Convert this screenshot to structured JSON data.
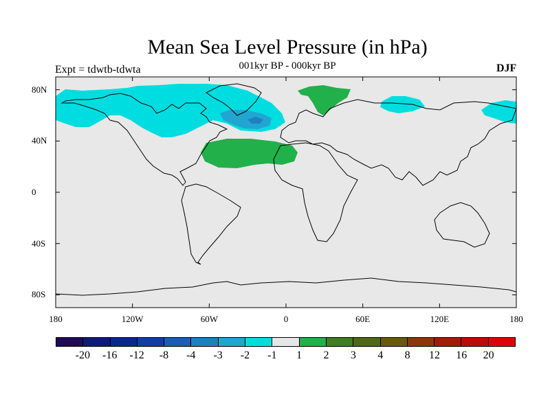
{
  "title": "Mean Sea Level Pressure (in hPa)",
  "subtitle": "001kyr BP - 000kyr BP",
  "left_label": "Expt = tdwtb-tdwta",
  "right_label": "DJF",
  "colors": {
    "land_background": "#e8e8e8",
    "ocean": "#e8e8e8",
    "coast": "#000000"
  },
  "axes": {
    "lat_ticks": [
      "80N",
      "40N",
      "0",
      "40S",
      "80S"
    ],
    "lat_values": [
      80,
      40,
      0,
      -40,
      -80
    ],
    "lon_ticks": [
      "180",
      "120W",
      "60W",
      "0",
      "60E",
      "120E",
      "180"
    ],
    "lon_values": [
      -180,
      -120,
      -60,
      0,
      60,
      120,
      180
    ],
    "lat_range": [
      -90,
      90
    ],
    "lon_range": [
      -180,
      180
    ]
  },
  "colorbar": {
    "colors": [
      "#1f0b5a",
      "#0f1a7a",
      "#0a2a8a",
      "#0f3fa0",
      "#1560b0",
      "#1f80c0",
      "#20a6d0",
      "#00dde0",
      "#e6e6e6",
      "#22b04a",
      "#3f7f1f",
      "#4f6a10",
      "#6a5a08",
      "#8a3a00",
      "#a01e00",
      "#c00a00",
      "#e00000"
    ],
    "labels": [
      "-20",
      "-16",
      "-12",
      "-8",
      "-4",
      "-3",
      "-2",
      "-1",
      "1",
      "2",
      "3",
      "4",
      "8",
      "12",
      "16",
      "20"
    ]
  },
  "anomaly_regions": [
    {
      "name": "north-pacific-low",
      "level": "-1 to -2",
      "color": "#00dde0",
      "approx_lon": -150,
      "approx_lat": 62
    },
    {
      "name": "north-atlantic-low",
      "level": "-1 to -2",
      "color": "#00dde0",
      "approx_lon": -50,
      "approx_lat": 70
    },
    {
      "name": "iceland-low-core",
      "level": "-2 to -3",
      "color": "#20a6d0",
      "approx_lon": -25,
      "approx_lat": 62
    },
    {
      "name": "subtropical-atlantic-high",
      "level": "1 to 2",
      "color": "#22b04a",
      "approx_lon": -30,
      "approx_lat": 35
    },
    {
      "name": "scandinavia-high",
      "level": "1 to 2",
      "color": "#22b04a",
      "approx_lon": 30,
      "approx_lat": 75
    },
    {
      "name": "siberia-low",
      "level": "-1 to -2",
      "color": "#00dde0",
      "approx_lon": 95,
      "approx_lat": 70
    },
    {
      "name": "far-east-low",
      "level": "-1 to -2",
      "color": "#00dde0",
      "approx_lon": 170,
      "approx_lat": 67
    }
  ]
}
